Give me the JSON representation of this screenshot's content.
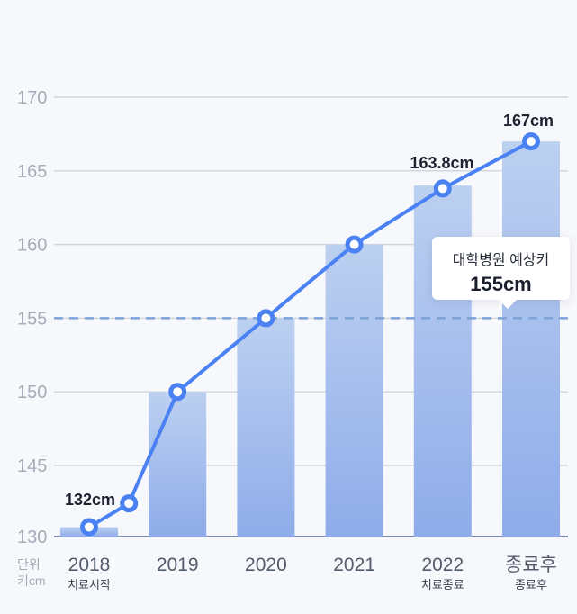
{
  "chart_data": {
    "type": "bar",
    "categories": [
      "2018",
      "2019",
      "2020",
      "2021",
      "2022",
      "종료후"
    ],
    "sublabels": [
      "치료시작",
      "",
      "",
      "",
      "치료종료",
      "종료후"
    ],
    "values": [
      132,
      150,
      155,
      160,
      164,
      167
    ],
    "line": {
      "points": [
        {
          "x": 2018,
          "y": 132
        },
        {
          "x": 2018.45,
          "y": 137
        },
        {
          "x": 2019,
          "y": 150
        },
        {
          "x": 2020,
          "y": 155
        },
        {
          "x": 2021,
          "y": 160
        },
        {
          "x": 2022,
          "y": 163.8
        },
        {
          "x": 2023,
          "y": 167
        }
      ]
    },
    "data_labels": [
      {
        "category": "2018",
        "text": "132cm"
      },
      {
        "category": "2022",
        "text": "163.8cm"
      },
      {
        "category": "종료후",
        "text": "167cm"
      }
    ],
    "yticks": [
      "170",
      "165",
      "160",
      "155",
      "150",
      "145",
      "130"
    ],
    "ytick_values": [
      170,
      165,
      160,
      155,
      150,
      145,
      130
    ],
    "ylim": [
      130,
      170
    ],
    "unit_label": [
      "단위",
      "키cm"
    ],
    "reference_line": {
      "value": 155,
      "label": "대학병원 예상키",
      "value_label": "155cm"
    },
    "grid": true,
    "colors": {
      "bar_top": "#bcd0f0",
      "bar_bottom": "#8facea",
      "line": "#4a82f3",
      "reference": "#7ea3d8",
      "grid": "#d3d6dd"
    }
  }
}
